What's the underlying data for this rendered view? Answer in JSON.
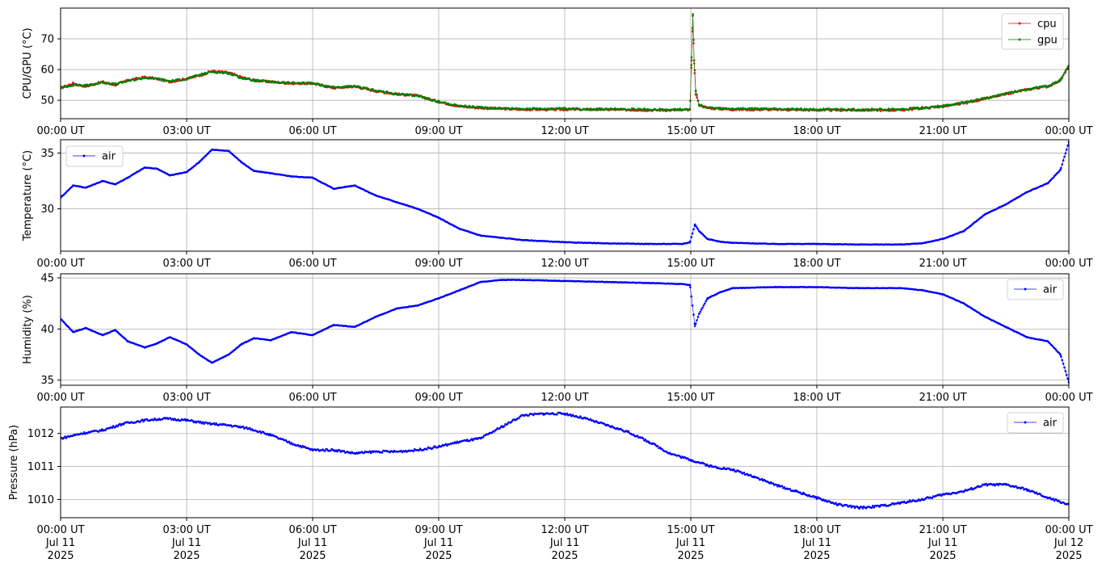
{
  "chart_data": [
    {
      "type": "line",
      "ylabel": "CPU/GPU (°C)",
      "ylim": [
        44,
        80
      ],
      "yticks": [
        50,
        60,
        70
      ],
      "xlim": [
        "00:00",
        "24:00"
      ],
      "xtick_labels": [
        "00:00 UT",
        "03:00 UT",
        "06:00 UT",
        "09:00 UT",
        "12:00 UT",
        "15:00 UT",
        "18:00 UT",
        "21:00 UT",
        "00:00 UT"
      ],
      "grid": true,
      "legend": "top-right",
      "series": [
        {
          "name": "cpu",
          "color": "#ff0000",
          "x_hours": [
            0,
            0.3,
            0.6,
            1.0,
            1.3,
            1.6,
            2.0,
            2.3,
            2.6,
            3.0,
            3.3,
            3.6,
            4.0,
            4.3,
            4.6,
            5.0,
            5.5,
            6.0,
            6.5,
            7.0,
            7.5,
            8.0,
            8.5,
            9.0,
            9.5,
            10.0,
            11.0,
            12.0,
            13.0,
            14.0,
            14.8,
            14.98,
            15.02,
            15.05,
            15.08,
            15.12,
            15.2,
            15.4,
            15.7,
            16.0,
            17.0,
            18.0,
            19.0,
            20.0,
            21.0,
            21.5,
            22.0,
            22.5,
            23.0,
            23.5,
            23.8,
            24.0
          ],
          "values": [
            54,
            55.5,
            54.5,
            56,
            55,
            56.5,
            57.5,
            57,
            56,
            57,
            58,
            59.5,
            59,
            57.5,
            56.5,
            56,
            55.5,
            55.5,
            54,
            54.5,
            53,
            52,
            51.5,
            49.5,
            48,
            47.5,
            47,
            47,
            47,
            46.8,
            46.8,
            47,
            63,
            77.5,
            62,
            52,
            48.5,
            47.5,
            47.2,
            47,
            47,
            46.8,
            46.8,
            46.8,
            48,
            49,
            50.5,
            52,
            53.5,
            54.5,
            56.5,
            61
          ]
        },
        {
          "name": "gpu",
          "color": "#008000",
          "x_hours": [
            0,
            0.3,
            0.6,
            1.0,
            1.3,
            1.6,
            2.0,
            2.3,
            2.6,
            3.0,
            3.3,
            3.6,
            4.0,
            4.3,
            4.6,
            5.0,
            5.5,
            6.0,
            6.5,
            7.0,
            7.5,
            8.0,
            8.5,
            9.0,
            9.5,
            10.0,
            11.0,
            12.0,
            13.0,
            14.0,
            14.8,
            14.98,
            15.02,
            15.05,
            15.08,
            15.12,
            15.2,
            15.4,
            15.7,
            16.0,
            17.0,
            18.0,
            19.0,
            20.0,
            21.0,
            21.5,
            22.0,
            22.5,
            23.0,
            23.5,
            23.8,
            24.0
          ],
          "values": [
            54,
            55,
            54.8,
            55.8,
            55.2,
            56.3,
            57.3,
            57,
            56.2,
            57,
            58.2,
            59.3,
            58.8,
            57.3,
            56.5,
            56,
            55.6,
            55.5,
            54.2,
            54.5,
            53.2,
            52,
            51.5,
            49.5,
            48.2,
            47.6,
            47.2,
            47.2,
            47.1,
            47,
            47,
            47.2,
            64,
            78,
            63,
            53,
            48.6,
            47.6,
            47.3,
            47.2,
            47.2,
            47,
            47,
            47,
            48.1,
            49.2,
            50.6,
            52.2,
            53.6,
            54.6,
            56.6,
            61.2
          ]
        }
      ]
    },
    {
      "type": "line",
      "ylabel": "Temperature (°C)",
      "ylim": [
        26.2,
        36.2
      ],
      "yticks": [
        30,
        35
      ],
      "xlim": [
        "00:00",
        "24:00"
      ],
      "xtick_labels": [
        "00:00 UT",
        "03:00 UT",
        "06:00 UT",
        "09:00 UT",
        "12:00 UT",
        "15:00 UT",
        "18:00 UT",
        "21:00 UT",
        "00:00 UT"
      ],
      "grid": true,
      "legend": "top-left",
      "series": [
        {
          "name": "air",
          "color": "#0000ff",
          "x_hours": [
            0,
            0.3,
            0.6,
            1.0,
            1.3,
            1.6,
            2.0,
            2.3,
            2.6,
            3.0,
            3.3,
            3.6,
            4.0,
            4.3,
            4.6,
            5.0,
            5.5,
            6.0,
            6.5,
            7.0,
            7.5,
            8.0,
            8.5,
            9.0,
            9.5,
            10.0,
            11.0,
            12.0,
            13.0,
            14.0,
            14.8,
            14.98,
            15.1,
            15.2,
            15.4,
            15.7,
            16.0,
            17.0,
            18.0,
            19.0,
            20.0,
            20.5,
            21.0,
            21.5,
            22.0,
            22.5,
            23.0,
            23.5,
            23.8,
            24.0
          ],
          "values": [
            31,
            32.1,
            31.9,
            32.5,
            32.2,
            32.8,
            33.7,
            33.6,
            33,
            33.3,
            34.2,
            35.3,
            35.2,
            34.2,
            33.4,
            33.2,
            32.9,
            32.8,
            31.8,
            32.1,
            31.2,
            30.6,
            30,
            29.2,
            28.2,
            27.6,
            27.2,
            27,
            26.9,
            26.85,
            26.85,
            27,
            28.6,
            28,
            27.3,
            27.05,
            26.95,
            26.85,
            26.85,
            26.8,
            26.8,
            26.9,
            27.3,
            28,
            29.5,
            30.4,
            31.5,
            32.3,
            33.5,
            36
          ]
        }
      ]
    },
    {
      "type": "line",
      "ylabel": "Humidity (%)",
      "ylim": [
        34.5,
        45.4
      ],
      "yticks": [
        35,
        40,
        45
      ],
      "xlim": [
        "00:00",
        "24:00"
      ],
      "xtick_labels": [
        "00:00 UT",
        "03:00 UT",
        "06:00 UT",
        "09:00 UT",
        "12:00 UT",
        "15:00 UT",
        "18:00 UT",
        "21:00 UT",
        "00:00 UT"
      ],
      "grid": true,
      "legend": "top-right",
      "series": [
        {
          "name": "air",
          "color": "#0000ff",
          "x_hours": [
            0,
            0.3,
            0.6,
            1.0,
            1.3,
            1.6,
            2.0,
            2.3,
            2.6,
            3.0,
            3.3,
            3.6,
            4.0,
            4.3,
            4.6,
            5.0,
            5.5,
            6.0,
            6.5,
            7.0,
            7.5,
            8.0,
            8.5,
            9.0,
            9.5,
            10.0,
            10.5,
            11.0,
            12.0,
            13.0,
            14.0,
            14.8,
            14.98,
            15.1,
            15.2,
            15.4,
            15.7,
            16.0,
            17.0,
            18.0,
            19.0,
            20.0,
            20.5,
            21.0,
            21.5,
            22.0,
            22.5,
            23.0,
            23.5,
            23.8,
            24.0
          ],
          "values": [
            41,
            39.7,
            40.1,
            39.4,
            39.9,
            38.8,
            38.2,
            38.6,
            39.2,
            38.5,
            37.5,
            36.7,
            37.5,
            38.5,
            39.1,
            38.9,
            39.7,
            39.4,
            40.4,
            40.2,
            41.2,
            42,
            42.3,
            43,
            43.8,
            44.6,
            44.8,
            44.8,
            44.7,
            44.6,
            44.5,
            44.4,
            44.3,
            40.3,
            41.5,
            43,
            43.6,
            44,
            44.1,
            44.1,
            44,
            44,
            43.8,
            43.4,
            42.5,
            41.2,
            40.2,
            39.2,
            38.8,
            37.5,
            34.8
          ]
        }
      ]
    },
    {
      "type": "line",
      "ylabel": "Pressure (hPa)",
      "ylim": [
        1009.45,
        1012.8
      ],
      "yticks": [
        1010,
        1011,
        1012
      ],
      "xlim": [
        "Jul 11 2025 00:00",
        "Jul 12 2025 00:00"
      ],
      "xtick_labels": [
        "00:00 UT\nJul 11\n2025",
        "03:00 UT\nJul 11\n2025",
        "06:00 UT\nJul 11\n2025",
        "09:00 UT\nJul 11\n2025",
        "12:00 UT\nJul 11\n2025",
        "15:00 UT\nJul 11\n2025",
        "18:00 UT\nJul 11\n2025",
        "21:00 UT\nJul 11\n2025",
        "00:00 UT\nJul 12\n2025"
      ],
      "grid": true,
      "legend": "top-right",
      "series": [
        {
          "name": "air",
          "color": "#0000ff",
          "x_hours": [
            0,
            0.5,
            1.0,
            1.5,
            2.0,
            2.5,
            3.0,
            3.5,
            4.0,
            4.5,
            5.0,
            5.5,
            6.0,
            6.5,
            7.0,
            7.5,
            8.0,
            8.5,
            9.0,
            9.5,
            10.0,
            10.5,
            11.0,
            11.5,
            12.0,
            12.5,
            13.0,
            13.5,
            14.0,
            14.5,
            15.0,
            15.5,
            16.0,
            16.5,
            17.0,
            17.5,
            18.0,
            18.5,
            19.0,
            19.5,
            20.0,
            20.5,
            21.0,
            21.5,
            22.0,
            22.5,
            23.0,
            23.5,
            24.0
          ],
          "values": [
            1011.85,
            1012.0,
            1012.1,
            1012.3,
            1012.4,
            1012.45,
            1012.4,
            1012.3,
            1012.25,
            1012.15,
            1011.95,
            1011.7,
            1011.5,
            1011.5,
            1011.4,
            1011.45,
            1011.45,
            1011.5,
            1011.6,
            1011.75,
            1011.85,
            1012.2,
            1012.55,
            1012.6,
            1012.6,
            1012.45,
            1012.25,
            1012.05,
            1011.75,
            1011.4,
            1011.2,
            1011.0,
            1010.9,
            1010.7,
            1010.45,
            1010.25,
            1010.05,
            1009.85,
            1009.75,
            1009.8,
            1009.9,
            1010.0,
            1010.15,
            1010.25,
            1010.45,
            1010.45,
            1010.3,
            1010.05,
            1009.85
          ]
        }
      ]
    }
  ]
}
